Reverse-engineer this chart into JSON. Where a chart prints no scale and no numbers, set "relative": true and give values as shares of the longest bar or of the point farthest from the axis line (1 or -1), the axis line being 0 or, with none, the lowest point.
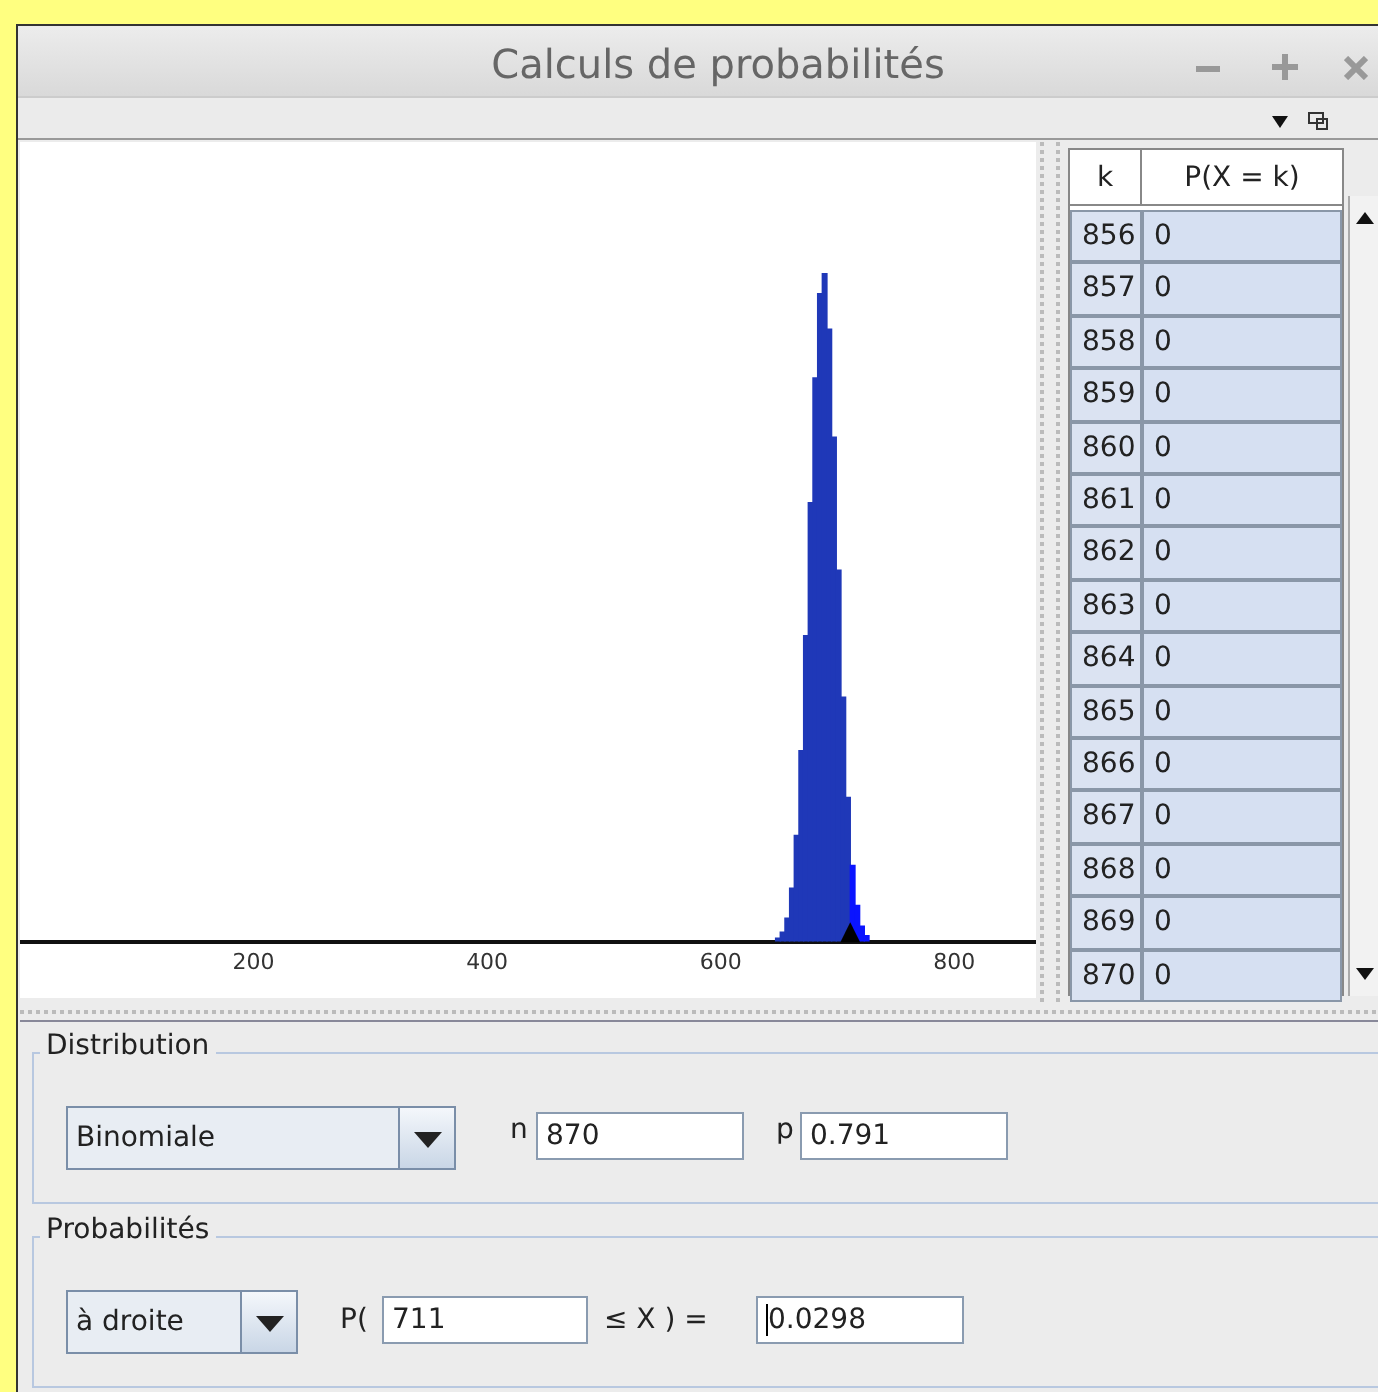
{
  "chart_data": {
    "type": "bar",
    "title": "Calculs de probabilités",
    "relative": true,
    "x": [
      649,
      653,
      657,
      661,
      665,
      669,
      673,
      677,
      681,
      685,
      689,
      693,
      697,
      701,
      705,
      709,
      713,
      717,
      721,
      725
    ],
    "values": [
      0.005,
      0.014,
      0.035,
      0.08,
      0.159,
      0.286,
      0.458,
      0.657,
      0.844,
      0.97,
      1,
      0.917,
      0.755,
      0.556,
      0.366,
      0.216,
      0.114,
      0.054,
      0.023,
      0.009
    ],
    "colors": [
      "#1f38b8",
      "#1f38b8",
      "#1f38b8",
      "#1f38b8",
      "#1f38b8",
      "#1f38b8",
      "#1f38b8",
      "#1f38b8",
      "#1f38b8",
      "#1f38b8",
      "#1f38b8",
      "#1f38b8",
      "#1f38b8",
      "#1f38b8",
      "#1f38b8",
      "#1f38b8",
      "#0a14ff",
      "#0a14ff",
      "#0a14ff",
      "#0a14ff"
    ],
    "xlim": [
      0,
      870
    ],
    "xticks": [
      200,
      400,
      600,
      800
    ],
    "annotations": [
      "k",
      "P(X = k)",
      "856",
      "0",
      "857",
      "0",
      "858",
      "0",
      "859",
      "0",
      "860",
      "0",
      "861",
      "0",
      "862",
      "0",
      "863",
      "0",
      "864",
      "0",
      "865",
      "0",
      "866",
      "0",
      "867",
      "0",
      "868",
      "0",
      "869",
      "0",
      "870",
      "0",
      "Distribution",
      "Binomiale",
      "n",
      "870",
      "p",
      "0.791",
      "Probabilités",
      "à droite",
      "P(",
      "711",
      "≤ X ) =",
      "0.0298",
      {
        "text": "▲",
        "x": 711,
        "y": 0
      }
    ]
  }
}
